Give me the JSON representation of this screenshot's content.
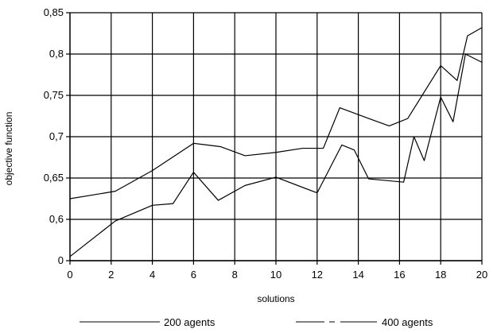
{
  "chart_data": {
    "type": "line",
    "title": "",
    "xlabel": "solutions",
    "ylabel": "objective function",
    "xlim": [
      0,
      20
    ],
    "ylim": [
      0,
      0.85
    ],
    "y_axis_break": true,
    "grid": true,
    "legend_position": "bottom",
    "x_ticks": [
      "0",
      "2",
      "4",
      "6",
      "8",
      "10",
      "12",
      "14",
      "16",
      "18",
      "20"
    ],
    "y_ticks": [
      {
        "value": 0,
        "label": "0"
      },
      {
        "value": 0.6,
        "label": "0,6"
      },
      {
        "value": 0.65,
        "label": "0,65"
      },
      {
        "value": 0.7,
        "label": "0,7"
      },
      {
        "value": 0.75,
        "label": "0,75"
      },
      {
        "value": 0.8,
        "label": "0,8"
      },
      {
        "value": 0.85,
        "label": "0,85"
      }
    ],
    "series": [
      {
        "name": "200 agents",
        "line_style": "solid",
        "color": "#000000",
        "points": [
          [
            0,
            0.5775
          ],
          [
            2.2,
            0.599
          ],
          [
            4,
            0.617
          ],
          [
            5,
            0.619
          ],
          [
            6,
            0.657
          ],
          [
            7.2,
            0.623
          ],
          [
            8.5,
            0.641
          ],
          [
            10,
            0.651
          ],
          [
            12,
            0.632
          ],
          [
            13.2,
            0.69
          ],
          [
            13.8,
            0.684
          ],
          [
            14.5,
            0.649
          ],
          [
            16.2,
            0.645
          ],
          [
            16.7,
            0.7
          ],
          [
            17.2,
            0.671
          ],
          [
            18,
            0.748
          ],
          [
            18.6,
            0.718
          ],
          [
            19.2,
            0.8
          ],
          [
            20,
            0.79
          ]
        ]
      },
      {
        "name": "400 agents",
        "line_style": "dashed",
        "color": "#000000",
        "points": [
          [
            0,
            0.625
          ],
          [
            2.2,
            0.634
          ],
          [
            4,
            0.659
          ],
          [
            6,
            0.692
          ],
          [
            7.3,
            0.688
          ],
          [
            8.5,
            0.677
          ],
          [
            10,
            0.681
          ],
          [
            11.3,
            0.686
          ],
          [
            12.3,
            0.686
          ],
          [
            13.1,
            0.735
          ],
          [
            14.5,
            0.722
          ],
          [
            15.5,
            0.713
          ],
          [
            16.4,
            0.722
          ],
          [
            18,
            0.786
          ],
          [
            18.8,
            0.768
          ],
          [
            19.3,
            0.822
          ],
          [
            20,
            0.832
          ]
        ]
      }
    ],
    "dash_segments": {
      "400 agents": [
        [
          3.3,
          6
        ],
        [
          8.7,
          10.5
        ]
      ]
    }
  }
}
